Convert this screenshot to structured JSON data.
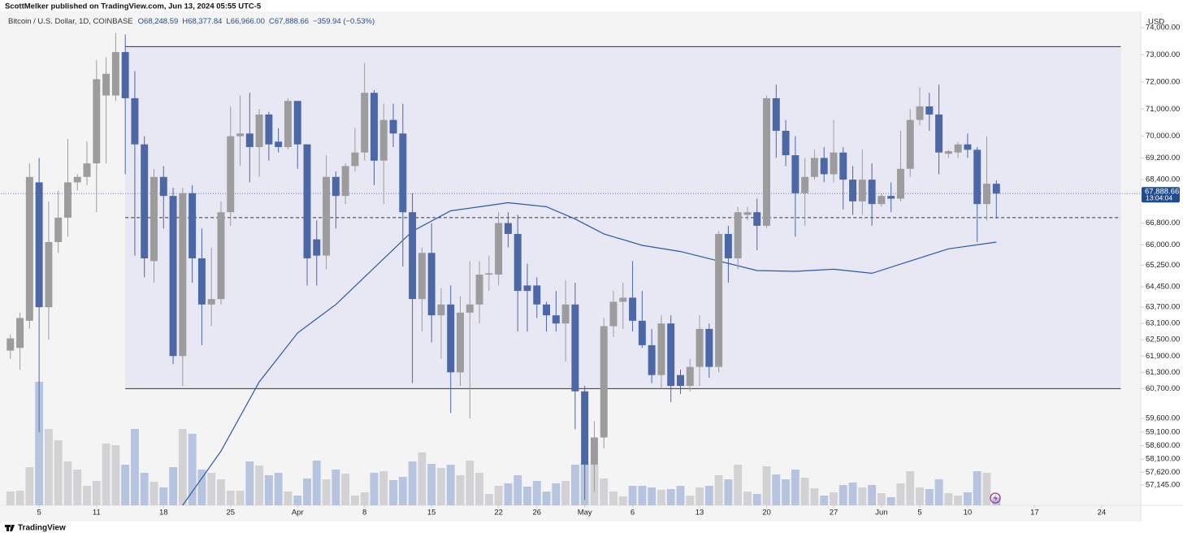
{
  "chart_data": {
    "type": "candlestick",
    "header": "ScottMelker published on TradingView.com, Jun 13, 2024 05:55 UTC-5",
    "title": "Bitcoin / U.S. Dollar, 1D, COINBASE",
    "ohlc_labels": [
      "O68,248.59",
      "H68,377.84",
      "L66,966.00",
      "C67,888.66"
    ],
    "change_label": "−359.94 (−0.53%)",
    "currency": "USD",
    "last_price_label": "67,888.66",
    "countdown": "13:04:04",
    "brand": "TradingView",
    "up_color": "#9c9c9c",
    "down_color": "#4b67a6",
    "volume_up_color": "#d2d2d4",
    "volume_down_color": "#b6c4e0",
    "x": [
      "2024-03-02",
      "2024-03-03",
      "2024-03-04",
      "2024-03-05",
      "2024-03-06",
      "2024-03-07",
      "2024-03-08",
      "2024-03-09",
      "2024-03-10",
      "2024-03-11",
      "2024-03-12",
      "2024-03-13",
      "2024-03-14",
      "2024-03-15",
      "2024-03-16",
      "2024-03-17",
      "2024-03-18",
      "2024-03-19",
      "2024-03-20",
      "2024-03-21",
      "2024-03-22",
      "2024-03-23",
      "2024-03-24",
      "2024-03-25",
      "2024-03-26",
      "2024-03-27",
      "2024-03-28",
      "2024-03-29",
      "2024-03-30",
      "2024-03-31",
      "2024-04-01",
      "2024-04-02",
      "2024-04-03",
      "2024-04-04",
      "2024-04-05",
      "2024-04-06",
      "2024-04-07",
      "2024-04-08",
      "2024-04-09",
      "2024-04-10",
      "2024-04-11",
      "2024-04-12",
      "2024-04-13",
      "2024-04-14",
      "2024-04-15",
      "2024-04-16",
      "2024-04-17",
      "2024-04-18",
      "2024-04-19",
      "2024-04-20",
      "2024-04-21",
      "2024-04-22",
      "2024-04-23",
      "2024-04-24",
      "2024-04-25",
      "2024-04-26",
      "2024-04-27",
      "2024-04-28",
      "2024-04-29",
      "2024-04-30",
      "2024-05-01",
      "2024-05-02",
      "2024-05-03",
      "2024-05-04",
      "2024-05-05",
      "2024-05-06",
      "2024-05-07",
      "2024-05-08",
      "2024-05-09",
      "2024-05-10",
      "2024-05-11",
      "2024-05-12",
      "2024-05-13",
      "2024-05-14",
      "2024-05-15",
      "2024-05-16",
      "2024-05-17",
      "2024-05-18",
      "2024-05-19",
      "2024-05-20",
      "2024-05-21",
      "2024-05-22",
      "2024-05-23",
      "2024-05-24",
      "2024-05-25",
      "2024-05-26",
      "2024-05-27",
      "2024-05-28",
      "2024-05-29",
      "2024-05-30",
      "2024-05-31",
      "2024-06-01",
      "2024-06-02",
      "2024-06-03",
      "2024-06-04",
      "2024-06-05",
      "2024-06-06",
      "2024-06-07",
      "2024-06-08",
      "2024-06-09",
      "2024-06-10",
      "2024-06-11",
      "2024-06-12",
      "2024-06-13"
    ],
    "open": [
      62100,
      62200,
      63200,
      68300,
      63700,
      66100,
      67000,
      68300,
      68500,
      69000,
      71500,
      71500,
      73100,
      71400,
      69700,
      65400,
      68500,
      67800,
      61900,
      67900,
      65500,
      63800,
      64000,
      67200,
      70000,
      70100,
      69600,
      70800,
      69800,
      69600,
      71300,
      69700,
      66200,
      65600,
      68500,
      67800,
      68900,
      69400,
      71600,
      69100,
      70600,
      70100,
      67200,
      64000,
      65700,
      63400,
      63800,
      61300,
      63500,
      63800,
      64900,
      64900,
      66800,
      66400,
      64500,
      64500,
      63800,
      63400,
      63100,
      63800,
      60600,
      57900,
      58900,
      63000,
      63900,
      64050,
      63200,
      62300,
      61200,
      63100,
      61200,
      60800,
      61500,
      62900,
      61500,
      66400,
      65500,
      67100,
      67200,
      66700,
      71400,
      70200,
      69300,
      67900,
      68500,
      69200,
      68600,
      69400,
      68400,
      67600,
      68400,
      67500,
      67800,
      67700,
      68800,
      70600,
      71100,
      70800,
      69350,
      69400,
      69700,
      69500,
      67500,
      68248.59
    ],
    "high": [
      62700,
      63500,
      69000,
      69200,
      67600,
      68000,
      69900,
      68600,
      69800,
      72800,
      72900,
      73800,
      73750,
      72400,
      70000,
      68800,
      68900,
      68100,
      68100,
      68200,
      66600,
      65900,
      67600,
      71100,
      71500,
      71600,
      71000,
      70900,
      70300,
      71400,
      71300,
      69700,
      66900,
      69300,
      68700,
      69000,
      70300,
      72700,
      71700,
      71200,
      71200,
      71200,
      67900,
      65900,
      66800,
      64400,
      64500,
      64100,
      65400,
      65400,
      65600,
      67200,
      67200,
      67100,
      65300,
      64800,
      63900,
      64300,
      64700,
      64600,
      60800,
      59500,
      63300,
      64300,
      64600,
      65400,
      64300,
      62900,
      63400,
      63400,
      61400,
      61800,
      63400,
      63100,
      66500,
      66700,
      67400,
      67400,
      67700,
      71500,
      71900,
      70600,
      70000,
      69200,
      69500,
      69600,
      70600,
      69600,
      68900,
      69500,
      69000,
      67900,
      68300,
      70200,
      71000,
      71800,
      71600,
      71900,
      69500,
      69800,
      70100,
      69600,
      70000,
      68377.84
    ],
    "low": [
      61800,
      61400,
      62900,
      59100,
      62500,
      65700,
      66300,
      68000,
      68200,
      67200,
      69000,
      71300,
      68600,
      65600,
      64800,
      64600,
      66600,
      61600,
      60800,
      64600,
      62300,
      63000,
      63800,
      66700,
      68900,
      68300,
      68500,
      69100,
      69400,
      69500,
      68800,
      64500,
      64500,
      65100,
      66600,
      67500,
      68700,
      69100,
      68200,
      67500,
      69600,
      65200,
      60900,
      62800,
      62400,
      61800,
      59800,
      60800,
      59600,
      63100,
      64300,
      64500,
      65900,
      62800,
      62800,
      63300,
      62800,
      62800,
      61700,
      59200,
      56600,
      56900,
      58500,
      62600,
      62900,
      62800,
      62200,
      60900,
      60700,
      60200,
      60500,
      60600,
      60800,
      61100,
      61300,
      64600,
      65100,
      66900,
      65800,
      66600,
      69200,
      68900,
      66300,
      66700,
      68400,
      68300,
      68300,
      67300,
      67100,
      67100,
      66700,
      67400,
      67200,
      67600,
      68500,
      70400,
      70200,
      68600,
      69200,
      69200,
      69200,
      66100,
      66900,
      66966
    ],
    "close": [
      62550,
      63300,
      68500,
      63700,
      66100,
      67000,
      68300,
      68500,
      69000,
      72100,
      72300,
      73100,
      71400,
      69700,
      65500,
      68500,
      67800,
      61900,
      67900,
      65500,
      63800,
      64000,
      67200,
      70000,
      70100,
      69600,
      70800,
      69700,
      69600,
      71300,
      69700,
      65500,
      65600,
      68500,
      67800,
      68900,
      69400,
      71600,
      69100,
      70600,
      70100,
      67200,
      64000,
      65700,
      63400,
      63800,
      61300,
      63500,
      63800,
      64900,
      64950,
      66800,
      66400,
      64300,
      64300,
      63800,
      63400,
      63100,
      63800,
      60600,
      57900,
      58900,
      63000,
      63900,
      64050,
      63200,
      62300,
      61200,
      63100,
      60800,
      60800,
      61500,
      62900,
      61500,
      66400,
      65500,
      67200,
      67200,
      66700,
      71400,
      70200,
      69300,
      67900,
      68500,
      69200,
      68600,
      69400,
      68400,
      67600,
      68400,
      67500,
      67800,
      67700,
      68800,
      70600,
      71100,
      70800,
      69400,
      69450,
      69700,
      69500,
      67500,
      68250,
      67888.66
    ],
    "volume": [
      17,
      18,
      47,
      152,
      94,
      80,
      54,
      44,
      24,
      30,
      76,
      74,
      50,
      94,
      40,
      29,
      22,
      47,
      94,
      88,
      44,
      40,
      32,
      18,
      18,
      54,
      49,
      37,
      40,
      17,
      12,
      33,
      55,
      32,
      44,
      39,
      12,
      16,
      40,
      42,
      31,
      35,
      54,
      65,
      51,
      46,
      50,
      37,
      55,
      40,
      14,
      24,
      27,
      37,
      23,
      30,
      17,
      27,
      30,
      50,
      52,
      50,
      33,
      17,
      11,
      24,
      24,
      22,
      19,
      20,
      24,
      12,
      22,
      24,
      37,
      32,
      50,
      17,
      14,
      48,
      38,
      32,
      44,
      34,
      21,
      12,
      16,
      25,
      28,
      22,
      25,
      15,
      10,
      27,
      42,
      22,
      20,
      32,
      15,
      12,
      16,
      42,
      40,
      10
    ],
    "volume_ylim": [
      0,
      182
    ],
    "ma": {
      "color": "#2a5aa6",
      "x": [
        "2024-03-20",
        "2024-03-24",
        "2024-03-28",
        "2024-04-01",
        "2024-04-05",
        "2024-04-09",
        "2024-04-13",
        "2024-04-17",
        "2024-04-21",
        "2024-04-23",
        "2024-04-27",
        "2024-04-30",
        "2024-05-03",
        "2024-05-07",
        "2024-05-11",
        "2024-05-15",
        "2024-05-19",
        "2024-05-23",
        "2024-05-27",
        "2024-05-31",
        "2024-06-04",
        "2024-06-08",
        "2024-06-13"
      ],
      "values": [
        56400,
        58400,
        60950,
        62750,
        63800,
        65150,
        66500,
        67250,
        67450,
        67550,
        67400,
        66950,
        66400,
        65980,
        65750,
        65400,
        65050,
        65020,
        65100,
        64950,
        65400,
        65850,
        66100
      ]
    },
    "range_box": {
      "top": 73300,
      "bottom": 60700,
      "mid": 67000,
      "from": "2024-03-14",
      "to": "2024-06-26",
      "fill": "#e8e8f4",
      "color": "#333333"
    },
    "xlim": [
      "2024-03-01",
      "2024-06-28"
    ],
    "xticks": [
      {
        "value": "2024-03-05",
        "label": "5"
      },
      {
        "value": "2024-03-11",
        "label": "11"
      },
      {
        "value": "2024-03-18",
        "label": "18"
      },
      {
        "value": "2024-03-25",
        "label": "25"
      },
      {
        "value": "2024-04-01",
        "label": "Apr"
      },
      {
        "value": "2024-04-08",
        "label": "8"
      },
      {
        "value": "2024-04-15",
        "label": "15"
      },
      {
        "value": "2024-04-22",
        "label": "22"
      },
      {
        "value": "2024-04-26",
        "label": "26"
      },
      {
        "value": "2024-05-01",
        "label": "May"
      },
      {
        "value": "2024-05-06",
        "label": "6"
      },
      {
        "value": "2024-05-13",
        "label": "13"
      },
      {
        "value": "2024-05-20",
        "label": "20"
      },
      {
        "value": "2024-05-27",
        "label": "27"
      },
      {
        "value": "2024-06-01",
        "label": "Jun"
      },
      {
        "value": "2024-06-05",
        "label": "5"
      },
      {
        "value": "2024-06-10",
        "label": "10"
      },
      {
        "value": "2024-06-17",
        "label": "17"
      },
      {
        "value": "2024-06-24",
        "label": "24"
      }
    ],
    "ylim": [
      56400,
      74600
    ],
    "yticks": [
      {
        "value": 74000,
        "label": "74,000.00"
      },
      {
        "value": 73000,
        "label": "73,000.00"
      },
      {
        "value": 72000,
        "label": "72,000.00"
      },
      {
        "value": 71000,
        "label": "71,000.00"
      },
      {
        "value": 70000,
        "label": "70,000.00"
      },
      {
        "value": 69200,
        "label": "69,200.00"
      },
      {
        "value": 68400,
        "label": "68,400.00"
      },
      {
        "value": 66800,
        "label": "66,800.00"
      },
      {
        "value": 66000,
        "label": "66,000.00"
      },
      {
        "value": 65250,
        "label": "65,250.00"
      },
      {
        "value": 64450,
        "label": "64,450.00"
      },
      {
        "value": 63700,
        "label": "63,700.00"
      },
      {
        "value": 63100,
        "label": "63,100.00"
      },
      {
        "value": 62500,
        "label": "62,500.00"
      },
      {
        "value": 61900,
        "label": "61,900.00"
      },
      {
        "value": 61300,
        "label": "61,300.00"
      },
      {
        "value": 60700,
        "label": "60,700.00"
      },
      {
        "value": 59600,
        "label": "59,600.00"
      },
      {
        "value": 59100,
        "label": "59,100.00"
      },
      {
        "value": 58600,
        "label": "58,600.00"
      },
      {
        "value": 58100,
        "label": "58,100.00"
      },
      {
        "value": 57620,
        "label": "57,620.00"
      },
      {
        "value": 57145,
        "label": "57,145.00"
      }
    ]
  }
}
